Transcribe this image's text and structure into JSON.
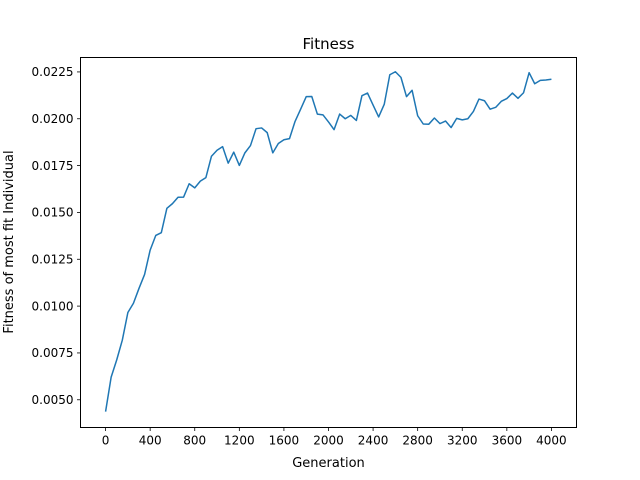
{
  "chart_data": {
    "type": "line",
    "title": "Fitness",
    "xlabel": "Generation",
    "ylabel": "Fitness of most fit Individual",
    "xlim": [
      -225,
      4225
    ],
    "ylim": [
      0.00352,
      0.02327
    ],
    "xticks": [
      0,
      400,
      800,
      1200,
      1600,
      2000,
      2400,
      2800,
      3200,
      3600,
      4000
    ],
    "xtick_labels": [
      "0",
      "400",
      "800",
      "1200",
      "1600",
      "2000",
      "2400",
      "2800",
      "3200",
      "3600",
      "4000"
    ],
    "yticks": [
      0.005,
      0.0075,
      0.01,
      0.0125,
      0.015,
      0.0175,
      0.02,
      0.0225
    ],
    "ytick_labels": [
      "0.0050",
      "0.0075",
      "0.0100",
      "0.0125",
      "0.0150",
      "0.0175",
      "0.0200",
      "0.0225"
    ],
    "grid": false,
    "legend": "none",
    "series": [
      {
        "color": "#1f77b4",
        "x": [
          0,
          50,
          100,
          150,
          200,
          250,
          300,
          350,
          400,
          450,
          500,
          550,
          600,
          650,
          700,
          750,
          800,
          850,
          900,
          950,
          1000,
          1050,
          1100,
          1150,
          1200,
          1250,
          1300,
          1350,
          1400,
          1450,
          1500,
          1550,
          1600,
          1650,
          1700,
          1750,
          1800,
          1850,
          1900,
          1950,
          2000,
          2050,
          2100,
          2150,
          2200,
          2250,
          2300,
          2350,
          2400,
          2450,
          2500,
          2550,
          2600,
          2650,
          2700,
          2750,
          2800,
          2850,
          2900,
          2950,
          3000,
          3050,
          3100,
          3150,
          3200,
          3250,
          3300,
          3350,
          3400,
          3450,
          3500,
          3550,
          3600,
          3650,
          3700,
          3750,
          3800,
          3850,
          3900,
          3950,
          4000
        ],
        "y": [
          0.00437,
          0.00621,
          0.00713,
          0.00818,
          0.00966,
          0.01015,
          0.01095,
          0.01169,
          0.01299,
          0.01377,
          0.01392,
          0.01522,
          0.01547,
          0.01581,
          0.01582,
          0.01653,
          0.01631,
          0.01667,
          0.01686,
          0.018,
          0.01832,
          0.01851,
          0.01763,
          0.01822,
          0.01751,
          0.01818,
          0.01857,
          0.01947,
          0.01951,
          0.01926,
          0.01818,
          0.01868,
          0.01888,
          0.01894,
          0.01986,
          0.02051,
          0.02118,
          0.02119,
          0.02025,
          0.02021,
          0.01983,
          0.01942,
          0.02025,
          0.02,
          0.02018,
          0.01991,
          0.02123,
          0.02137,
          0.02073,
          0.0201,
          0.02077,
          0.02235,
          0.02251,
          0.02221,
          0.02118,
          0.02152,
          0.02016,
          0.01972,
          0.01971,
          0.02004,
          0.01974,
          0.01988,
          0.01953,
          0.02002,
          0.01994,
          0.02,
          0.02039,
          0.02105,
          0.02096,
          0.02051,
          0.02061,
          0.02093,
          0.02108,
          0.02137,
          0.02109,
          0.02139,
          0.02246,
          0.02187,
          0.02205,
          0.02207,
          0.02211
        ]
      }
    ]
  }
}
